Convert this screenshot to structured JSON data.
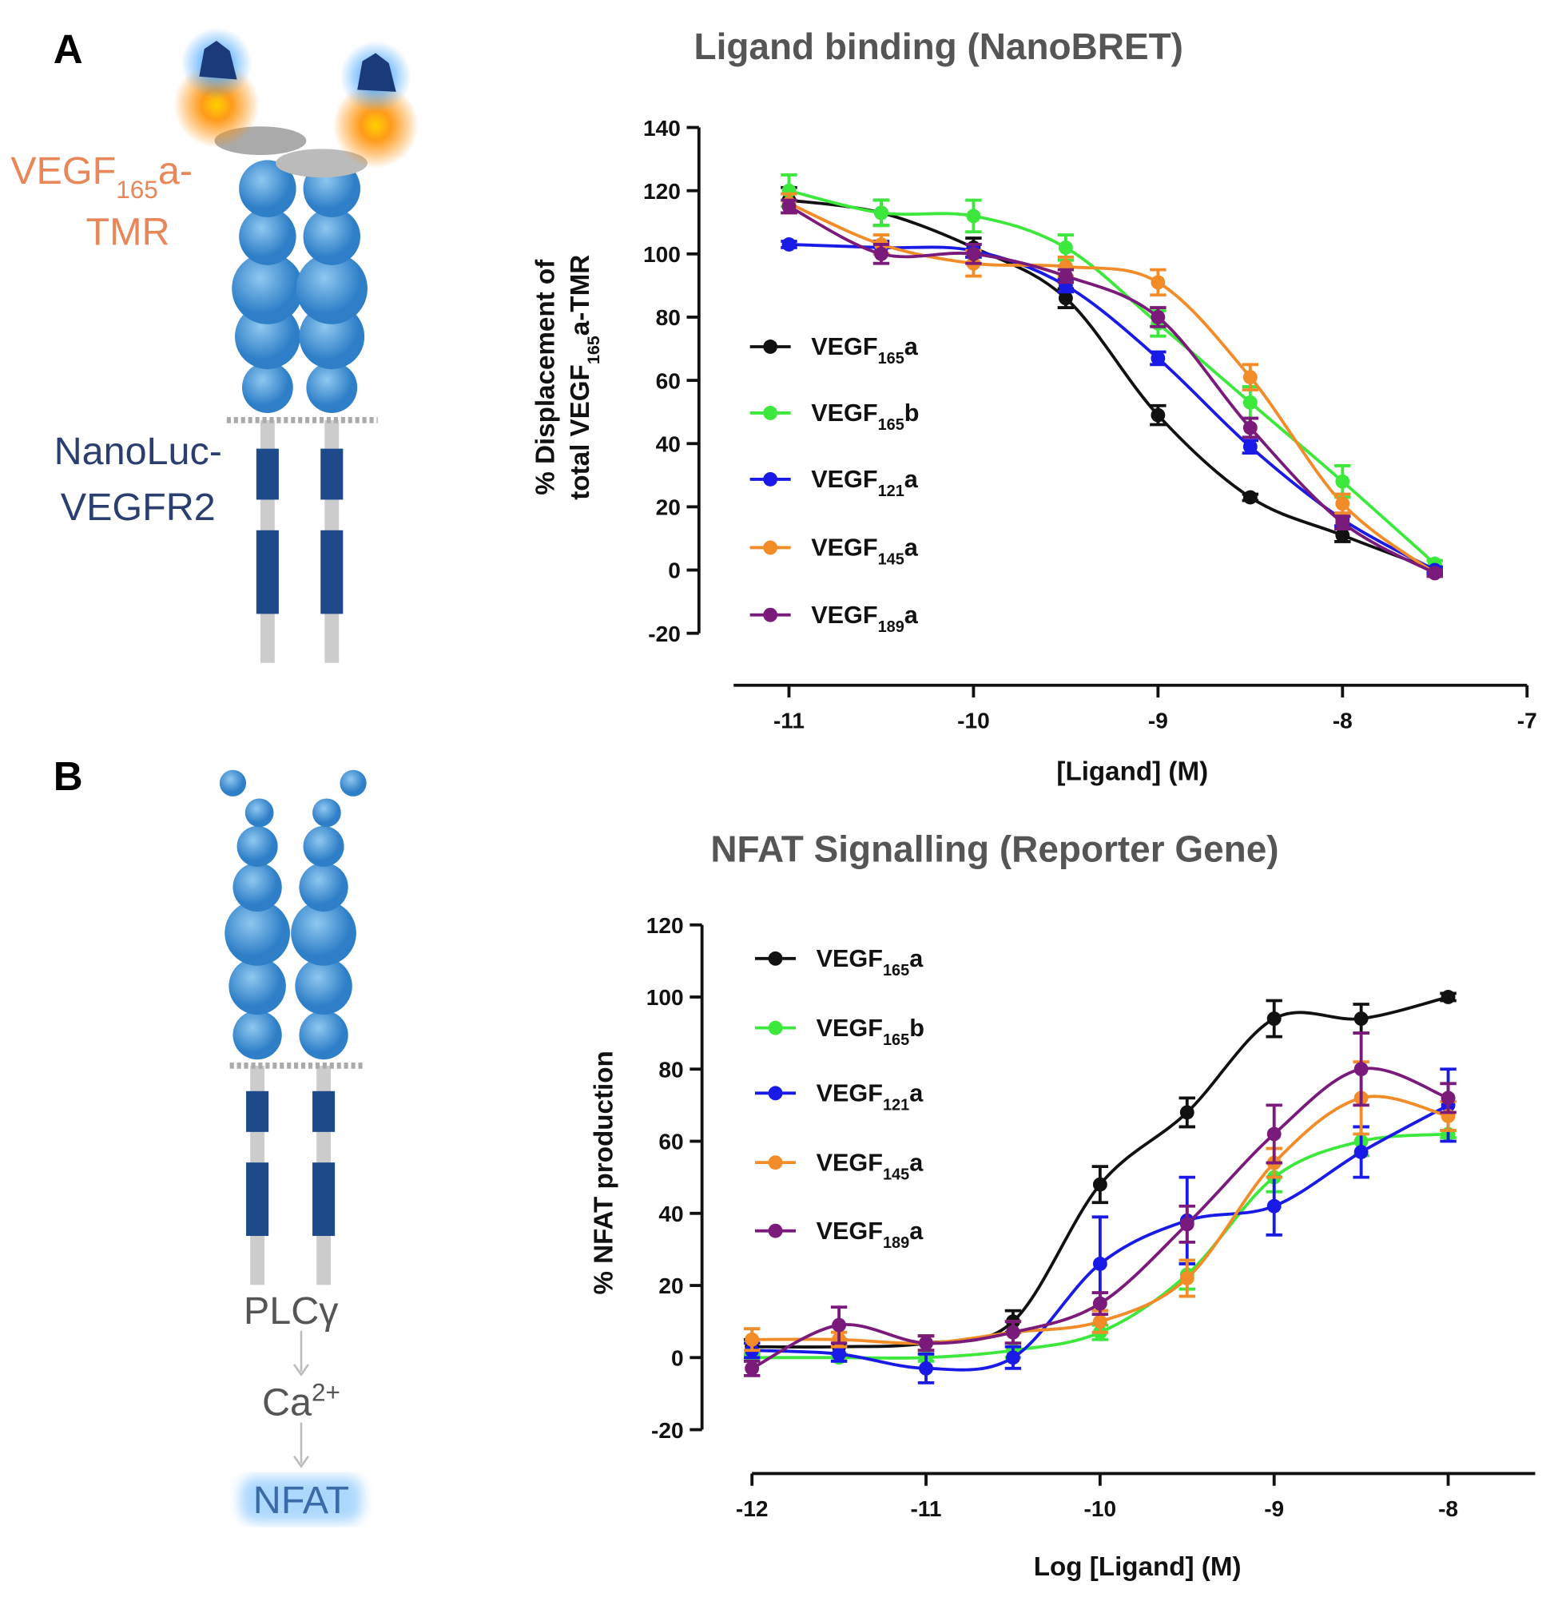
{
  "chart_data": [
    {
      "type": "line",
      "title": "Ligand binding (NanoBRET)",
      "xlabel": "[Ligand] (M)",
      "ylabel": [
        "% Displacement of",
        "total VEGF165a-TMR"
      ],
      "x": [
        -11,
        -10.5,
        -10,
        -9.5,
        -9,
        -8.5,
        -8,
        -7.5
      ],
      "xlim": [
        -11.3,
        -7
      ],
      "xticks": [
        -11,
        -10,
        -9,
        -8,
        -7
      ],
      "ylim": [
        -20,
        140
      ],
      "yticks": [
        -20,
        0,
        20,
        40,
        60,
        80,
        100,
        120,
        140
      ],
      "series": [
        {
          "name": "VEGF165a",
          "color": "#111111",
          "values": [
            117,
            113,
            102,
            86,
            49,
            23,
            11,
            0
          ],
          "errors": [
            4,
            4,
            3,
            3,
            3,
            1,
            2,
            1
          ]
        },
        {
          "name": "VEGF165b",
          "color": "#3de83d",
          "values": [
            120,
            113,
            112,
            102,
            78,
            53,
            28,
            2
          ],
          "errors": [
            5,
            4,
            5,
            4,
            4,
            5,
            5,
            1
          ]
        },
        {
          "name": "VEGF121a",
          "color": "#1a1ae6",
          "values": [
            103,
            102,
            101,
            90,
            67,
            39,
            16,
            0
          ],
          "errors": [
            1,
            2,
            2,
            2,
            2,
            2,
            2,
            1
          ]
        },
        {
          "name": "VEGF145a",
          "color": "#f28c28",
          "values": [
            116,
            103,
            97,
            96,
            91,
            61,
            21,
            -1
          ],
          "errors": [
            3,
            3,
            4,
            3,
            4,
            4,
            3,
            1
          ]
        },
        {
          "name": "VEGF189a",
          "color": "#7a1a7a",
          "values": [
            115,
            100,
            100,
            93,
            80,
            45,
            15,
            -1
          ],
          "errors": [
            2,
            3,
            3,
            2,
            3,
            3,
            2,
            1
          ]
        }
      ]
    },
    {
      "type": "line",
      "title": "NFAT Signalling (Reporter Gene)",
      "xlabel": "Log [Ligand] (M)",
      "ylabel": [
        "% NFAT production"
      ],
      "x": [
        -12,
        -11.5,
        -11,
        -10.5,
        -10,
        -9.5,
        -9,
        -8.5,
        -8
      ],
      "xlim": [
        -12,
        -7.5
      ],
      "xticks": [
        -12,
        -11,
        -10,
        -9,
        -8
      ],
      "ylim": [
        -20,
        120
      ],
      "yticks": [
        -20,
        0,
        20,
        40,
        60,
        80,
        100,
        120
      ],
      "series": [
        {
          "name": "VEGF165a",
          "color": "#111111",
          "values": [
            3,
            3,
            4,
            10,
            48,
            68,
            94,
            94,
            100
          ],
          "errors": [
            2,
            2,
            2,
            3,
            5,
            4,
            5,
            4,
            1
          ]
        },
        {
          "name": "VEGF165b",
          "color": "#3de83d",
          "values": [
            0,
            0,
            0,
            2,
            7,
            23,
            50,
            60,
            62
          ],
          "errors": [
            1,
            1,
            1,
            2,
            2,
            4,
            4,
            4,
            1
          ]
        },
        {
          "name": "VEGF121a",
          "color": "#1a1ae6",
          "values": [
            2,
            1,
            -3,
            0,
            26,
            38,
            42,
            57,
            70
          ],
          "errors": [
            2,
            2,
            4,
            3,
            13,
            12,
            8,
            7,
            10
          ]
        },
        {
          "name": "VEGF145a",
          "color": "#f28c28",
          "values": [
            5,
            5,
            4,
            7,
            10,
            22,
            54,
            72,
            67
          ],
          "errors": [
            3,
            2,
            2,
            3,
            3,
            5,
            4,
            10,
            4
          ]
        },
        {
          "name": "VEGF189a",
          "color": "#7a1a7a",
          "values": [
            -3,
            9,
            4,
            7,
            15,
            37,
            62,
            80,
            72
          ],
          "errors": [
            2,
            5,
            2,
            3,
            3,
            5,
            8,
            10,
            4
          ]
        }
      ]
    }
  ],
  "diagram": {
    "panel_a": "A",
    "panel_b": "B",
    "ligand_label": [
      "VEGF165a-",
      "TMR"
    ],
    "receptor_label": [
      "NanoLuc-",
      "VEGFR2"
    ],
    "pathway": [
      "PLCγ",
      "Ca2+",
      "NFAT"
    ]
  }
}
